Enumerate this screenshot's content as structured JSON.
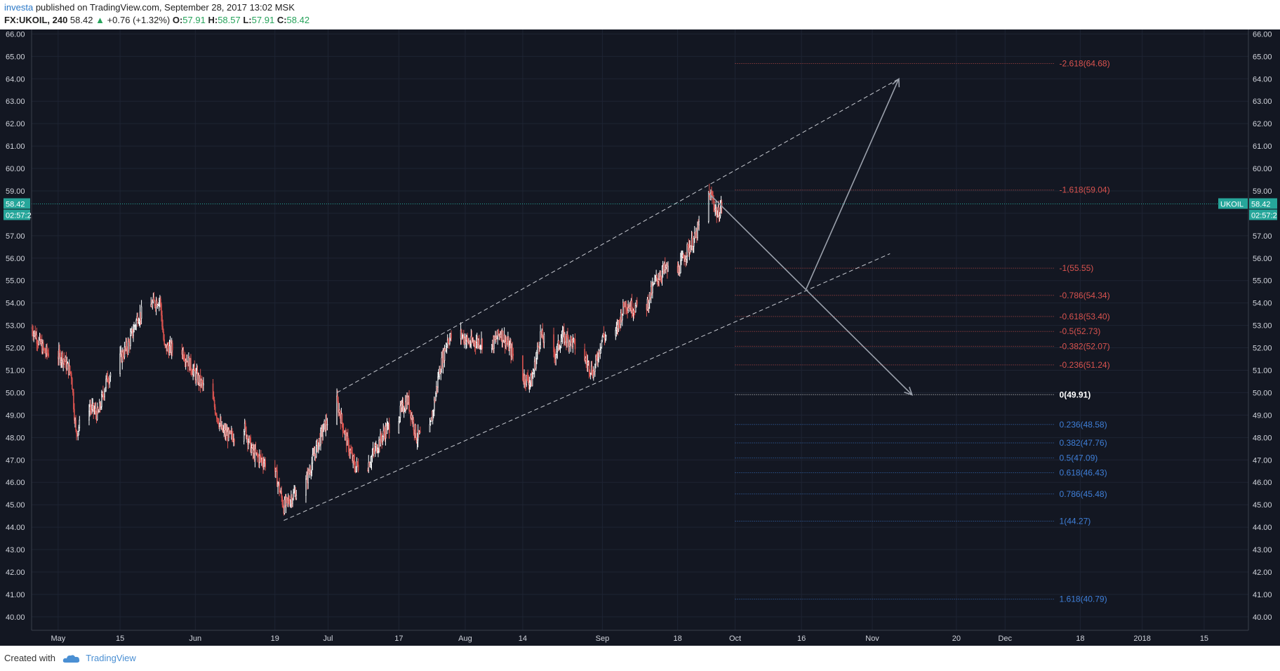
{
  "header": {
    "author": "investa",
    "published_text": "published on TradingView.com, September 28, 2017 13:02 MSK",
    "symbol": "FX:UKOIL, 240",
    "last": "58.42",
    "change": "+0.76 (+1.32%)",
    "o_label": "O:",
    "o_value": "57.91",
    "h_label": "H:",
    "h_value": "58.57",
    "l_label": "L:",
    "l_value": "57.91",
    "c_label": "C:",
    "c_value": "58.42"
  },
  "footer": {
    "created_with": "Created with",
    "brand": "TradingView"
  },
  "colors": {
    "background": "#131722",
    "grid": "#1e2433",
    "axis_text": "#d1d4dc",
    "bull": "#ffffff",
    "bear": "#d9534f",
    "fib_negative": "#d9534f",
    "fib_zero": "#ffffff",
    "fib_positive": "#3f7fd8",
    "price_tag": "#26a69a"
  },
  "chart_data": {
    "type": "candlestick",
    "symbol_tag": "UKOIL",
    "last_price": 58.42,
    "last_price_label": "58.42",
    "countdown_label": "02:57:2",
    "ylim": [
      39.4,
      66.2
    ],
    "y_ticks": [
      "40.00",
      "41.00",
      "42.00",
      "43.00",
      "44.00",
      "45.00",
      "46.00",
      "47.00",
      "48.00",
      "49.00",
      "50.00",
      "51.00",
      "52.00",
      "53.00",
      "54.00",
      "55.00",
      "56.00",
      "57.00",
      "58.00",
      "59.00",
      "60.00",
      "61.00",
      "62.00",
      "63.00",
      "64.00",
      "65.00",
      "66.00"
    ],
    "x_start": "2017-04-25",
    "x_end": "2018-01-25",
    "x_ticks": [
      {
        "date": "2017-05-01",
        "label": "May"
      },
      {
        "date": "2017-05-15",
        "label": "15"
      },
      {
        "date": "2017-06-01",
        "label": "Jun"
      },
      {
        "date": "2017-06-19",
        "label": "19"
      },
      {
        "date": "2017-07-01",
        "label": "Jul"
      },
      {
        "date": "2017-07-17",
        "label": "17"
      },
      {
        "date": "2017-08-01",
        "label": "Aug"
      },
      {
        "date": "2017-08-14",
        "label": "14"
      },
      {
        "date": "2017-09-01",
        "label": "Sep"
      },
      {
        "date": "2017-09-18",
        "label": "18"
      },
      {
        "date": "2017-10-01",
        "label": "Oct"
      },
      {
        "date": "2017-10-16",
        "label": "16"
      },
      {
        "date": "2017-11-01",
        "label": "Nov"
      },
      {
        "date": "2017-11-20",
        "label": "20"
      },
      {
        "date": "2017-12-01",
        "label": "Dec"
      },
      {
        "date": "2017-12-18",
        "label": "18"
      },
      {
        "date": "2018-01-01",
        "label": "2018"
      },
      {
        "date": "2018-01-15",
        "label": "15"
      }
    ],
    "price_path": [
      [
        "2017-04-25",
        52.9
      ],
      [
        "2017-04-28",
        51.8
      ],
      [
        "2017-05-02",
        51.6
      ],
      [
        "2017-05-04",
        50.8
      ],
      [
        "2017-05-05",
        48.2
      ],
      [
        "2017-05-08",
        49.4
      ],
      [
        "2017-05-10",
        49.0
      ],
      [
        "2017-05-12",
        50.6
      ],
      [
        "2017-05-15",
        51.5
      ],
      [
        "2017-05-17",
        52.2
      ],
      [
        "2017-05-19",
        53.4
      ],
      [
        "2017-05-22",
        53.9
      ],
      [
        "2017-05-24",
        54.2
      ],
      [
        "2017-05-25",
        52.0
      ],
      [
        "2017-05-29",
        51.9
      ],
      [
        "2017-06-01",
        50.8
      ],
      [
        "2017-06-05",
        49.6
      ],
      [
        "2017-06-07",
        48.3
      ],
      [
        "2017-06-09",
        48.0
      ],
      [
        "2017-06-12",
        48.5
      ],
      [
        "2017-06-14",
        47.3
      ],
      [
        "2017-06-16",
        47.0
      ],
      [
        "2017-06-19",
        46.5
      ],
      [
        "2017-06-21",
        44.9
      ],
      [
        "2017-06-23",
        45.4
      ],
      [
        "2017-06-26",
        46.0
      ],
      [
        "2017-06-28",
        47.3
      ],
      [
        "2017-06-30",
        48.4
      ],
      [
        "2017-07-03",
        49.6
      ],
      [
        "2017-07-05",
        48.0
      ],
      [
        "2017-07-07",
        46.7
      ],
      [
        "2017-07-10",
        46.8
      ],
      [
        "2017-07-12",
        47.6
      ],
      [
        "2017-07-14",
        48.3
      ],
      [
        "2017-07-17",
        49.0
      ],
      [
        "2017-07-19",
        49.7
      ],
      [
        "2017-07-21",
        48.0
      ],
      [
        "2017-07-24",
        48.3
      ],
      [
        "2017-07-26",
        50.8
      ],
      [
        "2017-07-28",
        52.4
      ],
      [
        "2017-07-31",
        52.6
      ],
      [
        "2017-08-02",
        52.2
      ],
      [
        "2017-08-04",
        52.3
      ],
      [
        "2017-08-07",
        52.1
      ],
      [
        "2017-08-09",
        52.7
      ],
      [
        "2017-08-11",
        52.0
      ],
      [
        "2017-08-14",
        50.7
      ],
      [
        "2017-08-16",
        50.5
      ],
      [
        "2017-08-18",
        52.6
      ],
      [
        "2017-08-21",
        51.6
      ],
      [
        "2017-08-23",
        52.5
      ],
      [
        "2017-08-25",
        52.3
      ],
      [
        "2017-08-28",
        51.5
      ],
      [
        "2017-08-30",
        50.9
      ],
      [
        "2017-09-01",
        52.5
      ],
      [
        "2017-09-04",
        52.6
      ],
      [
        "2017-09-06",
        54.0
      ],
      [
        "2017-09-08",
        53.8
      ],
      [
        "2017-09-11",
        53.9
      ],
      [
        "2017-09-13",
        55.0
      ],
      [
        "2017-09-15",
        55.5
      ],
      [
        "2017-09-18",
        55.4
      ],
      [
        "2017-09-20",
        56.3
      ],
      [
        "2017-09-22",
        56.9
      ],
      [
        "2017-09-25",
        58.9
      ],
      [
        "2017-09-26",
        58.6
      ],
      [
        "2017-09-27",
        57.9
      ],
      [
        "2017-09-28",
        58.4
      ]
    ],
    "channel_lines": [
      {
        "from": [
          "2017-06-21",
          44.3
        ],
        "to": [
          "2017-11-05",
          56.2
        ],
        "style": "dashed"
      },
      {
        "from": [
          "2017-07-03",
          50.0
        ],
        "to": [
          "2017-11-07",
          64.0
        ],
        "style": "dashed"
      }
    ],
    "arrows": [
      {
        "from": [
          "2017-09-25",
          58.9
        ],
        "to": [
          "2017-11-10",
          49.9
        ]
      },
      {
        "from": [
          "2017-10-17",
          54.6
        ],
        "to": [
          "2017-11-07",
          64.0
        ]
      }
    ],
    "fib_start": "2017-10-01",
    "fib_end": "2017-12-12",
    "fib_levels": [
      {
        "label": "-2.618(64.68)",
        "price": 64.68,
        "group": "neg"
      },
      {
        "label": "-1.618(59.04)",
        "price": 59.04,
        "group": "neg"
      },
      {
        "label": "-1(55.55)",
        "price": 55.55,
        "group": "neg"
      },
      {
        "label": "-0.786(54.34)",
        "price": 54.34,
        "group": "neg"
      },
      {
        "label": "-0.618(53.40)",
        "price": 53.4,
        "group": "neg"
      },
      {
        "label": "-0.5(52.73)",
        "price": 52.73,
        "group": "neg"
      },
      {
        "label": "-0.382(52.07)",
        "price": 52.07,
        "group": "neg"
      },
      {
        "label": "-0.236(51.24)",
        "price": 51.24,
        "group": "neg"
      },
      {
        "label": "0(49.91)",
        "price": 49.91,
        "group": "zero"
      },
      {
        "label": "0.236(48.58)",
        "price": 48.58,
        "group": "pos"
      },
      {
        "label": "0.382(47.76)",
        "price": 47.76,
        "group": "pos"
      },
      {
        "label": "0.5(47.09)",
        "price": 47.09,
        "group": "pos"
      },
      {
        "label": "0.618(46.43)",
        "price": 46.43,
        "group": "pos"
      },
      {
        "label": "0.786(45.48)",
        "price": 45.48,
        "group": "pos"
      },
      {
        "label": "1(44.27)",
        "price": 44.27,
        "group": "pos"
      },
      {
        "label": "1.618(40.79)",
        "price": 40.79,
        "group": "pos"
      }
    ]
  }
}
